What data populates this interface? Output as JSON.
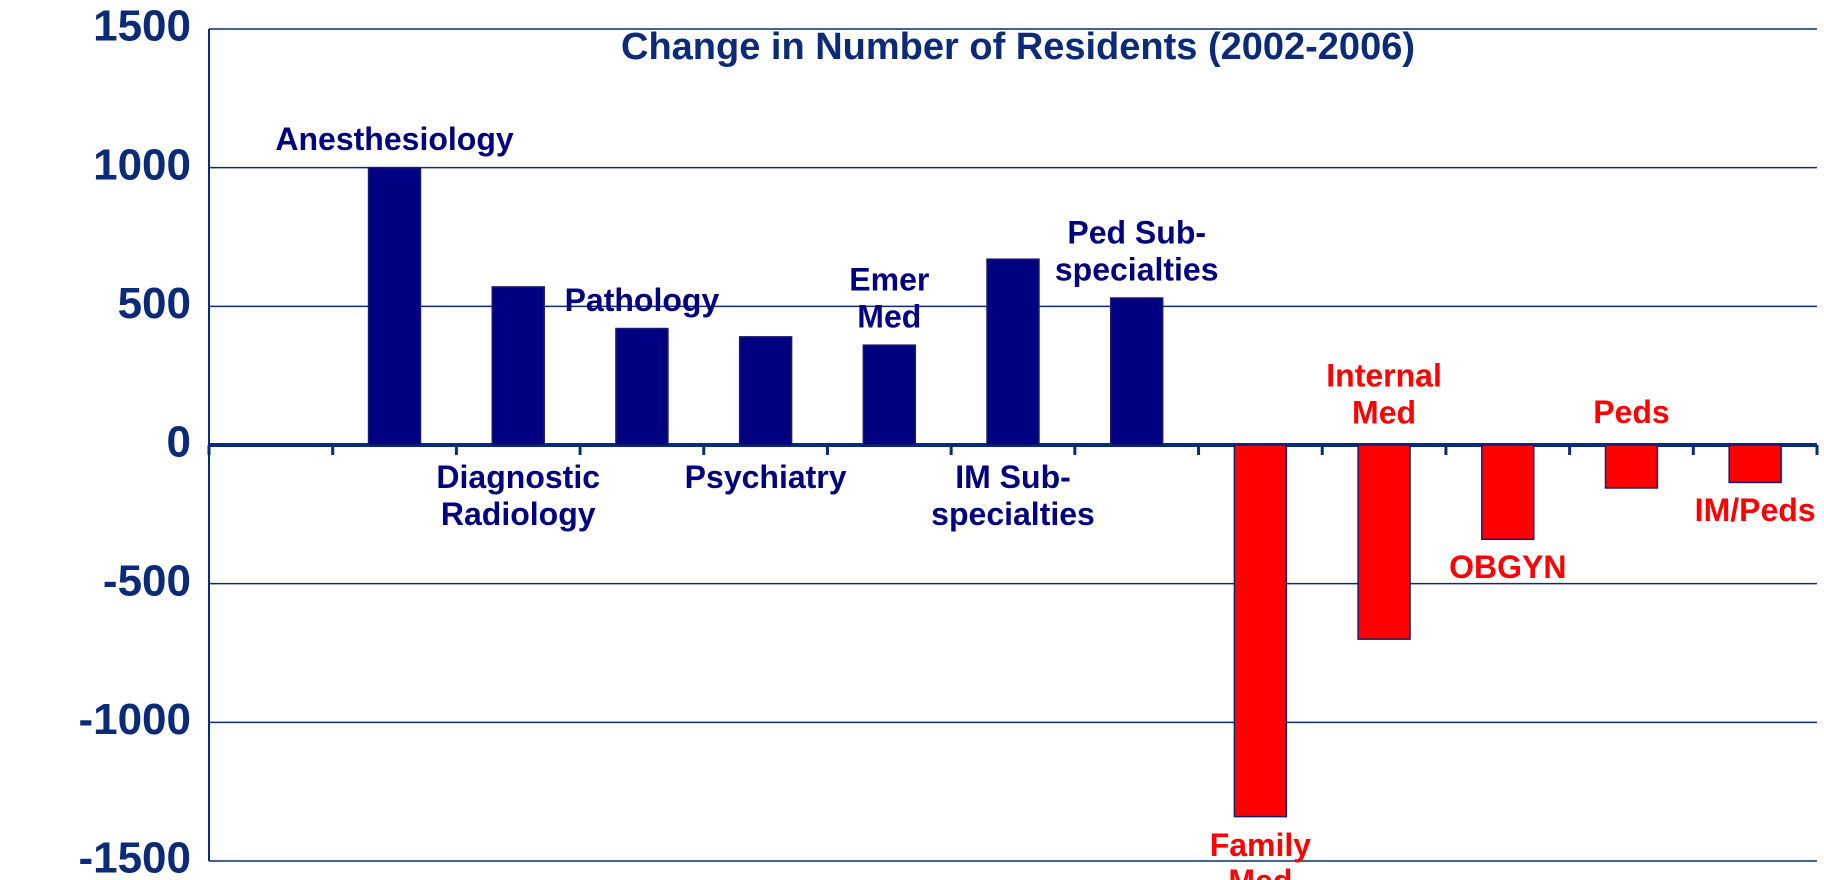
{
  "chart_data": {
    "type": "bar",
    "title": "Change in Number of Residents (2002-2006)",
    "categories": [
      null,
      "Anesthesiology",
      "Diagnostic\nRadiology",
      "Pathology",
      "Psychiatry",
      "Emer\nMed",
      "IM Sub-\nspecialties",
      "Ped Sub-\nspecialties",
      "Family\nMed",
      "Internal\nMed",
      "OBGYN",
      "Peds",
      "IM/Peds"
    ],
    "values": [
      null,
      1000,
      570,
      420,
      390,
      360,
      670,
      530,
      -1340,
      -700,
      -340,
      -155,
      -135
    ],
    "colors": [
      null,
      "#000080",
      "#000080",
      "#000080",
      "#000080",
      "#000080",
      "#000080",
      "#000080",
      "#ff0000",
      "#ff0000",
      "#ff0000",
      "#ff0000",
      "#ff0000"
    ],
    "ylim": [
      -1500,
      1500
    ],
    "yticks": [
      -1500,
      -1000,
      -500,
      0,
      500,
      1000,
      1500
    ],
    "grid": true
  }
}
